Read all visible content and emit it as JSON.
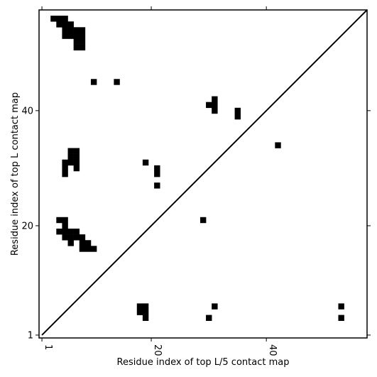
{
  "chart_data": {
    "type": "heatmap",
    "title": "",
    "xlabel": "Residue index of top L/5 contact map",
    "ylabel": "Residue index of top L contact map",
    "xlim": [
      0.5,
      57.5
    ],
    "ylim": [
      0.5,
      57.5
    ],
    "x_ticks": [
      {
        "value": 1,
        "label": "1"
      },
      {
        "value": 20,
        "label": "20"
      },
      {
        "value": 40,
        "label": "40"
      }
    ],
    "y_ticks": [
      {
        "value": 1,
        "label": "1"
      },
      {
        "value": 20,
        "label": "20"
      },
      {
        "value": 40,
        "label": "40"
      }
    ],
    "diagonal": true,
    "grid": false,
    "cell_color": "#000000",
    "background_color": "#ffffff",
    "upper_left_cells": [
      [
        3,
        56
      ],
      [
        4,
        56
      ],
      [
        5,
        56
      ],
      [
        4,
        55
      ],
      [
        5,
        55
      ],
      [
        6,
        55
      ],
      [
        5,
        54
      ],
      [
        6,
        54
      ],
      [
        7,
        54
      ],
      [
        8,
        54
      ],
      [
        5,
        53
      ],
      [
        6,
        53
      ],
      [
        7,
        53
      ],
      [
        8,
        53
      ],
      [
        7,
        52
      ],
      [
        8,
        52
      ],
      [
        7,
        51
      ],
      [
        8,
        51
      ],
      [
        10,
        45
      ],
      [
        14,
        45
      ],
      [
        31,
        42
      ],
      [
        30,
        41
      ],
      [
        31,
        41
      ],
      [
        31,
        40
      ],
      [
        35,
        40
      ],
      [
        35,
        39
      ],
      [
        42,
        34
      ],
      [
        6,
        33
      ],
      [
        7,
        33
      ],
      [
        6,
        32
      ],
      [
        7,
        32
      ],
      [
        5,
        31
      ],
      [
        6,
        31
      ],
      [
        7,
        31
      ],
      [
        5,
        30
      ],
      [
        7,
        30
      ],
      [
        5,
        29
      ],
      [
        19,
        31
      ],
      [
        21,
        30
      ],
      [
        21,
        29
      ],
      [
        21,
        27
      ],
      [
        29,
        21
      ],
      [
        4,
        21
      ],
      [
        5,
        21
      ],
      [
        5,
        20
      ],
      [
        4,
        19
      ],
      [
        5,
        19
      ],
      [
        6,
        19
      ],
      [
        7,
        19
      ],
      [
        5,
        18
      ],
      [
        6,
        18
      ],
      [
        7,
        18
      ],
      [
        8,
        18
      ],
      [
        6,
        17
      ],
      [
        8,
        17
      ],
      [
        9,
        17
      ],
      [
        8,
        16
      ],
      [
        9,
        16
      ],
      [
        10,
        16
      ]
    ],
    "lower_right_cells": [
      [
        18,
        6
      ],
      [
        19,
        6
      ],
      [
        18,
        5
      ],
      [
        19,
        5
      ],
      [
        19,
        4
      ],
      [
        31,
        6
      ],
      [
        30,
        4
      ],
      [
        53,
        6
      ],
      [
        53,
        4
      ]
    ]
  }
}
